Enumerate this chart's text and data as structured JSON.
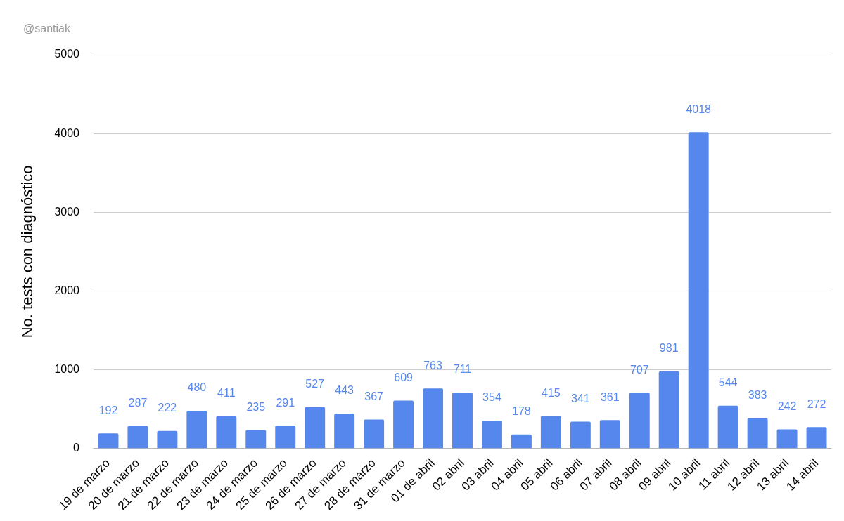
{
  "chart_data": {
    "type": "bar",
    "ylabel": "No. tests con diagnóstico",
    "categories": [
      "19 de marzo",
      "20 de marzo",
      "21 de marzo",
      "22 de marzo",
      "23 de marzo",
      "24 de marzo",
      "25 de marzo",
      "26 de marzo",
      "27 de marzo",
      "28 de marzo",
      "31 de marzo",
      "01 de abril",
      "02 abril",
      "03 abril",
      "04 abril",
      "05 abril",
      "06 abril",
      "07 abril",
      "08 abril",
      "09 abril",
      "10 abril",
      "11 abril",
      "12 abril",
      "13 abril",
      "14 abril"
    ],
    "values": [
      192,
      287,
      222,
      480,
      411,
      235,
      291,
      527,
      443,
      367,
      609,
      763,
      711,
      354,
      178,
      415,
      341,
      361,
      707,
      981,
      4018,
      544,
      383,
      242,
      272
    ],
    "color": "#5687ec",
    "ylim": [
      0,
      5000
    ],
    "yticks": [
      0,
      1000,
      2000,
      3000,
      4000,
      5000
    ],
    "grid": "y",
    "data_labels": true,
    "legend": false,
    "annotations": [
      "@santiak"
    ]
  }
}
